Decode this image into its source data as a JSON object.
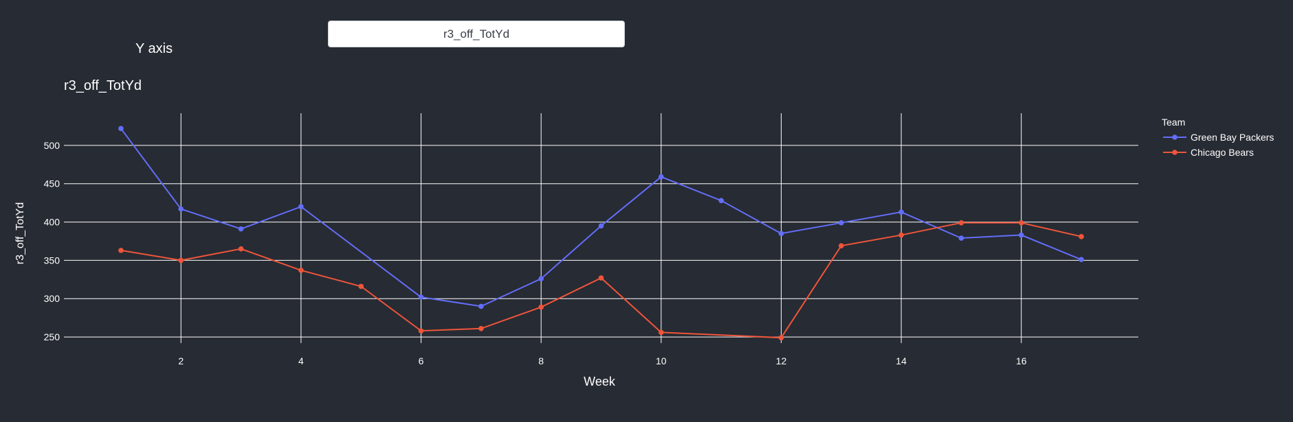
{
  "controls": {
    "label": "Y axis",
    "dropdown_value": "r3_off_TotYd"
  },
  "chart_data": {
    "type": "line",
    "title": "r3_off_TotYd",
    "xlabel": "Week",
    "ylabel": "r3_off_TotYd",
    "xlim": [
      0.05,
      17.95
    ],
    "ylim": [
      242,
      542
    ],
    "xticks": [
      2,
      4,
      6,
      8,
      10,
      12,
      14,
      16
    ],
    "yticks": [
      250,
      300,
      350,
      400,
      450,
      500
    ],
    "grid": true,
    "legend": {
      "title": "Team",
      "placement": "right"
    },
    "series": [
      {
        "name": "Green Bay Packers",
        "color": "#636efa",
        "x": [
          1,
          2,
          3,
          4,
          6,
          7,
          8,
          9,
          10,
          11,
          12,
          13,
          14,
          15,
          16,
          17
        ],
        "y": [
          522,
          417,
          391,
          420,
          302,
          290,
          326,
          395,
          459,
          428,
          385,
          399,
          413,
          379,
          383,
          351
        ],
        "breaks_after": [
          16
        ]
      },
      {
        "name": "Chicago Bears",
        "color": "#ef553b",
        "x": [
          1,
          2,
          3,
          4,
          5,
          6,
          7,
          8,
          9,
          10,
          12,
          13,
          14,
          15,
          16,
          17
        ],
        "y": [
          363,
          350,
          365,
          337,
          316,
          258,
          261,
          289,
          327,
          256,
          249,
          369,
          383,
          399,
          399,
          381
        ],
        "breaks_after": [
          16
        ]
      }
    ]
  }
}
